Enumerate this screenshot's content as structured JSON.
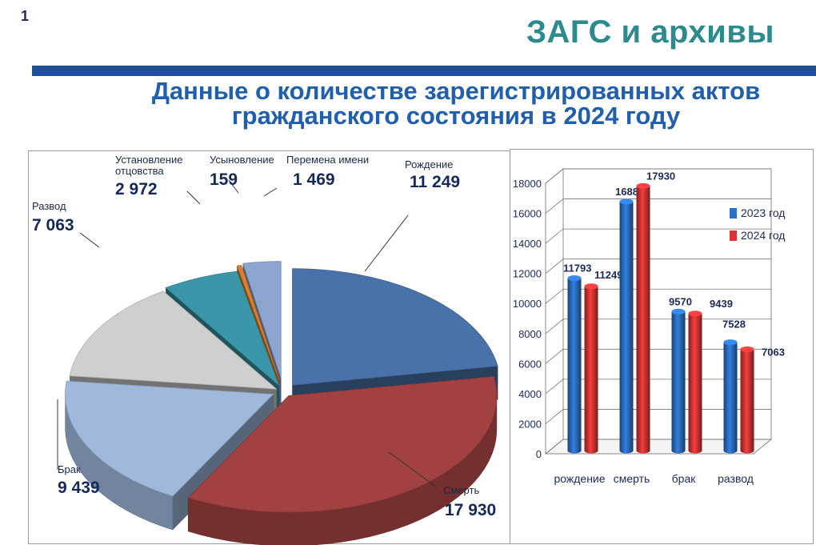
{
  "slide_number": "1",
  "topic_title": "ЗАГС и архивы",
  "subtitle_line1": "Данные о количестве зарегистрированных актов",
  "subtitle_line2": "гражданского состояния в 2024 году",
  "colors": {
    "accent_bar": "#1f4e9a",
    "topic": "#2d8a8f",
    "subtitle": "#1f5fae",
    "series_2023": "#2b6fc4",
    "series_2024": "#d93434"
  },
  "chart_data": [
    {
      "type": "pie",
      "title": "",
      "slices": [
        {
          "name_lines": [
            "Рождение"
          ],
          "value": 11249,
          "value_label": "11 249",
          "color": "#4a72aa"
        },
        {
          "name_lines": [
            "Смерть"
          ],
          "value": 17930,
          "value_label": "17 930",
          "color": "#a24141"
        },
        {
          "name_lines": [
            "Брак"
          ],
          "value": 9439,
          "value_label": "9 439",
          "color": "#9fb8dc"
        },
        {
          "name_lines": [
            "Развод"
          ],
          "value": 7063,
          "value_label": "7 063",
          "color": "#cfcfcf"
        },
        {
          "name_lines": [
            "Установление",
            "отцовства"
          ],
          "value": 2972,
          "value_label": "2 972",
          "color": "#3a96a8"
        },
        {
          "name_lines": [
            "Усыновление"
          ],
          "value": 159,
          "value_label": "159",
          "color": "#e0802c"
        },
        {
          "name_lines": [
            "Перемена имени"
          ],
          "value": 1469,
          "value_label": "1 469",
          "color": "#8ea6cf"
        }
      ]
    },
    {
      "type": "bar",
      "title": "",
      "categories": [
        "рождение",
        "смерть",
        "брак",
        "развод"
      ],
      "series": [
        {
          "name": "2023 год",
          "values": [
            11793,
            16887,
            9570,
            7528
          ]
        },
        {
          "name": "2024 год",
          "values": [
            11249,
            17930,
            9439,
            7063
          ]
        }
      ],
      "ylim": [
        0,
        18000
      ],
      "yticks": [
        0,
        2000,
        4000,
        6000,
        8000,
        10000,
        12000,
        14000,
        16000,
        18000
      ],
      "grid": true,
      "legend": "top-right"
    }
  ]
}
